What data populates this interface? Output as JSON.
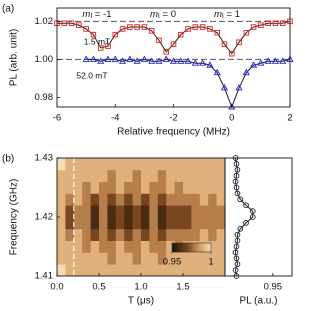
{
  "chart_data": [
    {
      "type": "line",
      "panel_label": "(a)",
      "x_label": "Relative frequency (MHz)",
      "y_label": "PL (arb. unit)",
      "xlim": [
        -6,
        2
      ],
      "xticks": [
        -6,
        -4,
        -2,
        0,
        2
      ],
      "ylim": [
        0.975,
        1.027
      ],
      "yticks": [
        {
          "value": 0.98,
          "label": "0.98"
        },
        {
          "value": 1,
          "label": "1.00"
        },
        {
          "value": 1.02,
          "label": "1.02"
        }
      ],
      "reference_lines": [
        1.02,
        1
      ],
      "annotations": [
        {
          "text": "m",
          "subscript": "I",
          "suffix": " = -1"
        },
        {
          "text": "m",
          "subscript": "I",
          "suffix": " = 0"
        },
        {
          "text": "m",
          "subscript": "I",
          "suffix": " = 1"
        }
      ],
      "series": [
        {
          "name": "1.5 mT",
          "color": "#e0201b",
          "marker": "square",
          "line_color": "#2a2222",
          "x": [
            -6,
            -5.75,
            -5.5,
            -5.25,
            -5,
            -4.75,
            -4.5,
            -4.25,
            -4,
            -3.75,
            -3.5,
            -3.25,
            -3,
            -2.75,
            -2.5,
            -2.25,
            -2,
            -1.75,
            -1.5,
            -1.25,
            -1,
            -0.75,
            -0.5,
            -0.25,
            0,
            0.25,
            0.5,
            0.75,
            1,
            1.25,
            1.5,
            1.75,
            2
          ],
          "values": [
            1.019,
            1.019,
            1.019,
            1.018,
            1.016,
            1.013,
            1.006,
            1.007,
            1.013,
            1.016,
            1.017,
            1.017,
            1.017,
            1.015,
            1.01,
            1.004,
            1.008,
            1.013,
            1.016,
            1.017,
            1.017,
            1.016,
            1.014,
            1.008,
            1.003,
            1.009,
            1.014,
            1.017,
            1.018,
            1.019,
            1.019,
            1.019,
            1.02
          ]
        },
        {
          "name": "52.0 mT",
          "color": "#2323d6",
          "marker": "triangle",
          "line_color": "#1a1a2a",
          "x": [
            -5,
            -4.75,
            -4.5,
            -4.25,
            -4,
            -3.75,
            -3.5,
            -3.25,
            -3,
            -2.75,
            -2.5,
            -2.25,
            -2,
            -1.75,
            -1.5,
            -1.25,
            -1,
            -0.75,
            -0.5,
            -0.25,
            0,
            0.25,
            0.5,
            0.75,
            1,
            1.25,
            1.5,
            1.75,
            2
          ],
          "values": [
            1,
            1,
            0.999,
            1,
            1,
            0.999,
            1,
            0.999,
            1,
            0.999,
            0.999,
            1,
            0.999,
            0.999,
            0.999,
            0.998,
            0.998,
            0.997,
            0.993,
            0.985,
            0.975,
            0.985,
            0.993,
            0.997,
            0.998,
            0.999,
            0.999,
            0.999,
            1
          ]
        }
      ]
    },
    {
      "type": "heatmap",
      "panel_label": "(b)",
      "x_label": "T (μs)",
      "y_label": "Frequency (GHz)",
      "xlim": [
        0,
        2
      ],
      "xticks": [
        {
          "value": 0,
          "label": "0.0"
        },
        0.5,
        {
          "value": 1,
          "label": "1.0"
        },
        1.5
      ],
      "ylim": [
        1.41,
        1.43
      ],
      "yticks": [
        1.41,
        1.42,
        1.43
      ],
      "marker_line_x": 0.2,
      "clim": [
        0.95,
        1
      ],
      "colorbar_ticks": [
        0.95,
        1
      ],
      "x": [
        0.05,
        0.15,
        0.25,
        0.35,
        0.45,
        0.55,
        0.65,
        0.75,
        0.85,
        0.95,
        1.05,
        1.15,
        1.25,
        1.35,
        1.45,
        1.55,
        1.65,
        1.75,
        1.85,
        1.95
      ],
      "y": [
        1.411,
        1.413,
        1.415,
        1.417,
        1.419,
        1.421,
        1.423,
        1.425,
        1.427,
        1.429
      ],
      "z": [
        [
          1,
          0.99,
          0.99,
          0.99,
          0.99,
          0.99,
          0.99,
          0.99,
          0.99,
          0.99,
          0.99,
          0.99,
          0.99,
          0.99,
          0.99,
          0.99,
          0.99,
          0.99,
          0.99,
          0.99
        ],
        [
          0.99,
          0.99,
          0.99,
          0.99,
          0.99,
          0.99,
          0.98,
          0.99,
          0.99,
          0.98,
          0.99,
          0.99,
          0.98,
          0.99,
          0.99,
          0.99,
          0.99,
          0.99,
          0.99,
          0.99
        ],
        [
          0.99,
          0.99,
          0.99,
          0.98,
          0.99,
          0.98,
          0.98,
          0.99,
          0.98,
          0.98,
          0.99,
          0.98,
          0.98,
          0.99,
          0.98,
          0.99,
          0.99,
          0.99,
          0.99,
          0.99
        ],
        [
          0.99,
          0.98,
          0.99,
          0.98,
          0.97,
          0.98,
          0.97,
          0.98,
          0.97,
          0.98,
          0.97,
          0.98,
          0.97,
          0.98,
          0.98,
          0.98,
          0.98,
          0.99,
          0.98,
          0.99
        ],
        [
          0.99,
          0.97,
          0.98,
          0.98,
          0.96,
          0.98,
          0.96,
          0.97,
          0.96,
          0.97,
          0.96,
          0.98,
          0.96,
          0.97,
          0.97,
          0.97,
          0.98,
          0.98,
          0.98,
          0.98
        ],
        [
          0.99,
          0.97,
          0.98,
          0.98,
          0.96,
          0.98,
          0.96,
          0.97,
          0.96,
          0.97,
          0.96,
          0.98,
          0.96,
          0.97,
          0.97,
          0.97,
          0.98,
          0.98,
          0.98,
          0.98
        ],
        [
          0.99,
          0.98,
          0.99,
          0.98,
          0.97,
          0.98,
          0.97,
          0.98,
          0.97,
          0.98,
          0.97,
          0.98,
          0.97,
          0.98,
          0.98,
          0.98,
          0.98,
          0.99,
          0.98,
          0.99
        ],
        [
          0.99,
          0.99,
          0.99,
          0.98,
          0.99,
          0.98,
          0.98,
          0.99,
          0.98,
          0.98,
          0.99,
          0.98,
          0.98,
          0.99,
          0.98,
          0.99,
          0.99,
          0.99,
          0.99,
          0.99
        ],
        [
          0.99,
          0.99,
          0.99,
          0.99,
          0.99,
          0.99,
          0.98,
          0.99,
          0.99,
          0.98,
          0.99,
          0.99,
          0.98,
          0.99,
          0.99,
          0.99,
          0.99,
          0.99,
          0.99,
          0.99
        ],
        [
          1,
          0.99,
          0.99,
          0.99,
          0.99,
          0.99,
          0.99,
          0.99,
          0.99,
          0.99,
          0.99,
          0.99,
          0.99,
          0.99,
          0.99,
          0.99,
          0.99,
          0.99,
          0.99,
          0.99
        ]
      ]
    },
    {
      "type": "scatter",
      "x_label": "PL (a.u.)",
      "xlim": [
        0.9,
        0.97
      ],
      "xticks": [
        {
          "value": 0.95,
          "label": "0.95"
        }
      ],
      "ylim": [
        1.41,
        1.43
      ],
      "series": [
        {
          "color": "#222222",
          "marker": "circle",
          "line_color": "#222222",
          "y": [
            1.41,
            1.411,
            1.412,
            1.413,
            1.414,
            1.415,
            1.416,
            1.417,
            1.418,
            1.419,
            1.42,
            1.421,
            1.422,
            1.423,
            1.424,
            1.425,
            1.426,
            1.427,
            1.428,
            1.429,
            1.43
          ],
          "values": [
            0.912,
            0.911,
            0.913,
            0.912,
            0.911,
            0.912,
            0.913,
            0.913,
            0.916,
            0.922,
            0.929,
            0.929,
            0.922,
            0.916,
            0.913,
            0.912,
            0.911,
            0.912,
            0.913,
            0.912,
            0.911
          ]
        }
      ]
    }
  ]
}
